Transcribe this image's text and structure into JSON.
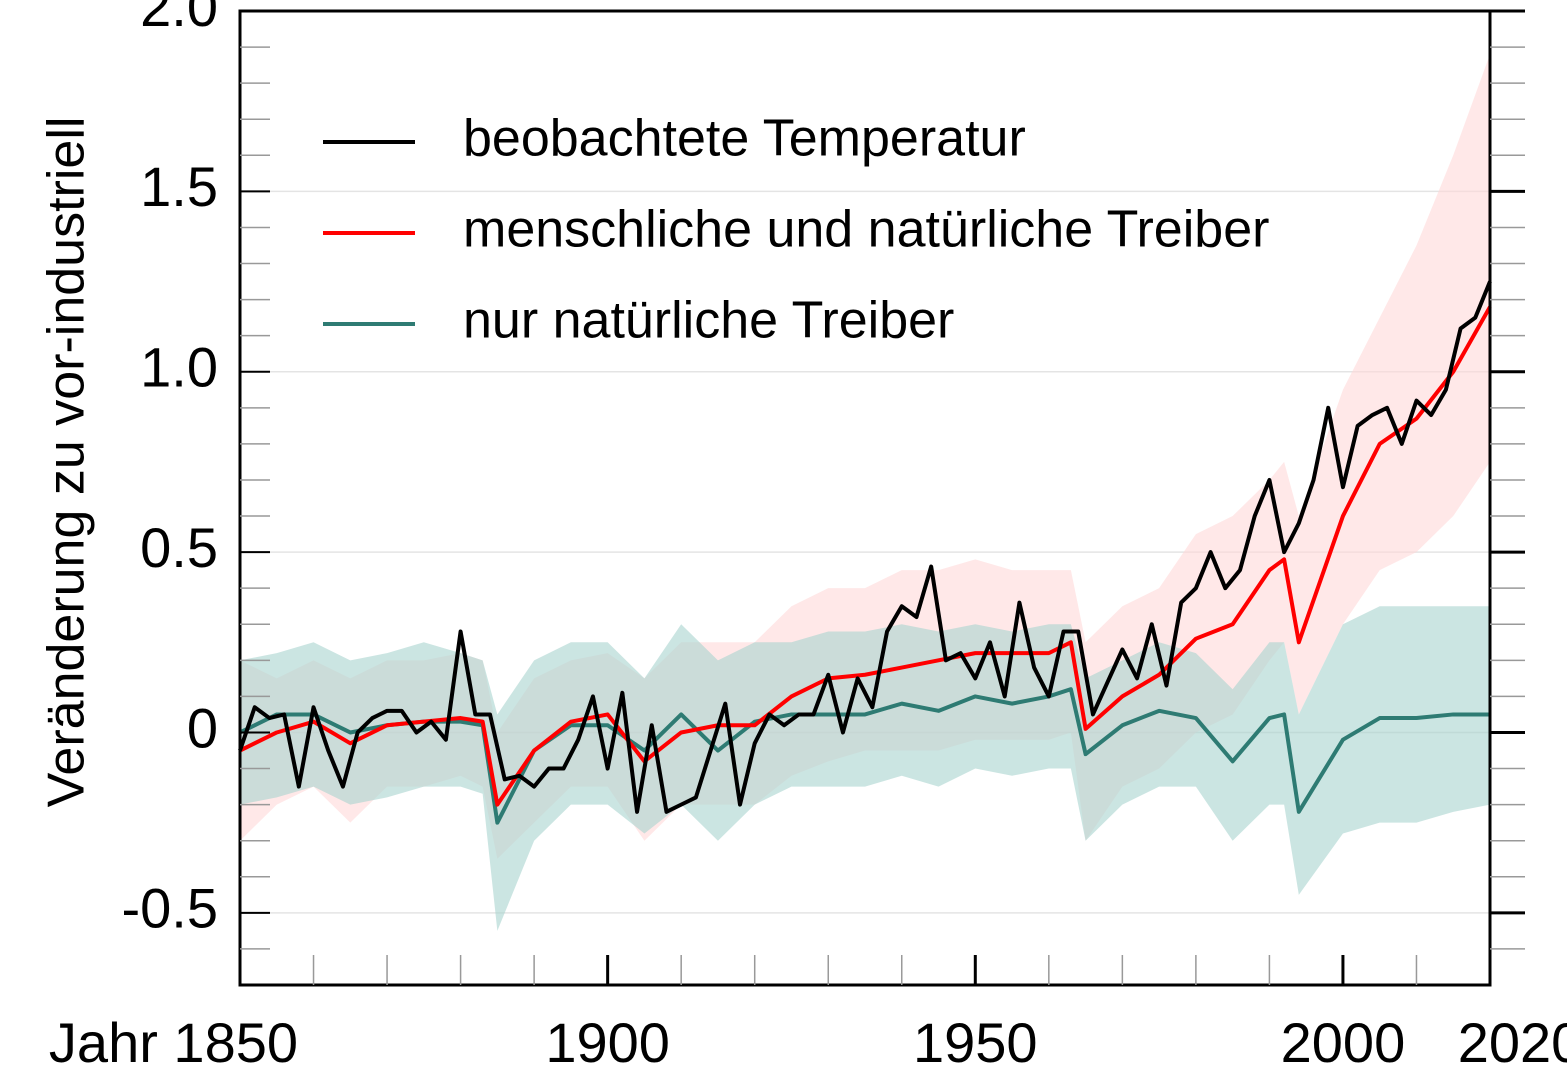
{
  "chart_data": {
    "type": "line",
    "ylabel": "Veränderung zu vor-industriell",
    "xlim": [
      1850,
      2020
    ],
    "ylim": [
      -0.7,
      2.0
    ],
    "xticks": [
      {
        "value": 1850,
        "label": "Jahr 1850"
      },
      1900,
      1950,
      2000,
      2020
    ],
    "xminorticks": [
      1860,
      1870,
      1880,
      1890,
      1910,
      1920,
      1930,
      1940,
      1960,
      1970,
      1980,
      1990,
      2010
    ],
    "yticks": [
      {
        "value": -0.5,
        "label": "-0.5"
      },
      0,
      0.5,
      {
        "value": 1,
        "label": "1.0"
      },
      1.5,
      {
        "value": 2,
        "label": "2.0"
      }
    ],
    "yminorticks": [
      -0.6,
      -0.4,
      -0.3,
      -0.2,
      -0.1,
      0.1,
      0.2,
      0.3,
      0.4,
      0.6,
      0.7,
      0.8,
      0.9,
      1.1,
      1.2,
      1.3,
      1.4,
      1.6,
      1.7,
      1.8,
      1.9
    ],
    "grid": true,
    "legend": "upper left",
    "series": [
      {
        "name": "beobachtete Temperatur",
        "color": "#000000",
        "x": [
          1850,
          1852,
          1854,
          1856,
          1858,
          1860,
          1862,
          1864,
          1866,
          1868,
          1870,
          1872,
          1874,
          1876,
          1878,
          1880,
          1882,
          1884,
          1886,
          1888,
          1890,
          1892,
          1894,
          1896,
          1898,
          1900,
          1902,
          1904,
          1906,
          1908,
          1910,
          1912,
          1914,
          1916,
          1918,
          1920,
          1922,
          1924,
          1926,
          1928,
          1930,
          1932,
          1934,
          1936,
          1938,
          1940,
          1942,
          1944,
          1946,
          1948,
          1950,
          1952,
          1954,
          1956,
          1958,
          1960,
          1962,
          1964,
          1966,
          1968,
          1970,
          1972,
          1974,
          1976,
          1978,
          1980,
          1982,
          1984,
          1986,
          1988,
          1990,
          1992,
          1994,
          1996,
          1998,
          2000,
          2002,
          2004,
          2006,
          2008,
          2010,
          2012,
          2014,
          2016,
          2018,
          2020
        ],
        "values": [
          -0.05,
          0.07,
          0.04,
          0.05,
          -0.15,
          0.07,
          -0.05,
          -0.15,
          0.0,
          0.04,
          0.06,
          0.06,
          0.0,
          0.03,
          -0.02,
          0.28,
          0.05,
          0.05,
          -0.13,
          -0.12,
          -0.15,
          -0.1,
          -0.1,
          -0.02,
          0.1,
          -0.1,
          0.11,
          -0.22,
          0.02,
          -0.22,
          -0.2,
          -0.18,
          -0.05,
          0.08,
          -0.2,
          -0.03,
          0.05,
          0.02,
          0.05,
          0.05,
          0.16,
          0.0,
          0.15,
          0.07,
          0.28,
          0.35,
          0.32,
          0.46,
          0.2,
          0.22,
          0.15,
          0.25,
          0.1,
          0.36,
          0.18,
          0.1,
          0.28,
          0.28,
          0.05,
          0.14,
          0.23,
          0.15,
          0.3,
          0.13,
          0.36,
          0.4,
          0.5,
          0.4,
          0.45,
          0.6,
          0.7,
          0.5,
          0.58,
          0.7,
          0.9,
          0.68,
          0.85,
          0.88,
          0.9,
          0.8,
          0.92,
          0.88,
          0.95,
          1.12,
          1.15,
          1.25
        ]
      },
      {
        "name": "menschliche und natürliche Treiber",
        "color": "#ff0000",
        "band_color": "#ffd9d9",
        "x": [
          1850,
          1855,
          1860,
          1865,
          1870,
          1875,
          1880,
          1883,
          1885,
          1890,
          1895,
          1900,
          1905,
          1910,
          1915,
          1920,
          1925,
          1930,
          1935,
          1940,
          1945,
          1950,
          1955,
          1960,
          1963,
          1965,
          1970,
          1975,
          1980,
          1985,
          1990,
          1992,
          1994,
          2000,
          2005,
          2010,
          2015,
          2020
        ],
        "values": [
          -0.05,
          0,
          0.03,
          -0.03,
          0.02,
          0.03,
          0.04,
          0.03,
          -0.2,
          -0.05,
          0.03,
          0.05,
          -0.08,
          0,
          0.02,
          0.02,
          0.1,
          0.15,
          0.16,
          0.18,
          0.2,
          0.22,
          0.22,
          0.22,
          0.25,
          0.01,
          0.1,
          0.16,
          0.26,
          0.3,
          0.45,
          0.48,
          0.25,
          0.6,
          0.8,
          0.87,
          1.0,
          1.18
        ],
        "upper": [
          0.2,
          0.15,
          0.2,
          0.15,
          0.2,
          0.2,
          0.22,
          0.2,
          0.0,
          0.15,
          0.2,
          0.22,
          0.15,
          0.25,
          0.25,
          0.25,
          0.35,
          0.4,
          0.4,
          0.45,
          0.45,
          0.48,
          0.45,
          0.45,
          0.45,
          0.25,
          0.35,
          0.4,
          0.55,
          0.6,
          0.7,
          0.75,
          0.6,
          0.95,
          1.15,
          1.35,
          1.6,
          1.88
        ],
        "lower": [
          -0.3,
          -0.2,
          -0.15,
          -0.25,
          -0.15,
          -0.15,
          -0.12,
          -0.15,
          -0.35,
          -0.25,
          -0.15,
          -0.15,
          -0.3,
          -0.2,
          -0.2,
          -0.2,
          -0.12,
          -0.08,
          -0.05,
          -0.05,
          -0.05,
          -0.02,
          -0.02,
          -0.02,
          0.0,
          -0.3,
          -0.15,
          -0.1,
          0.0,
          0.05,
          0.2,
          0.25,
          0.05,
          0.3,
          0.45,
          0.5,
          0.6,
          0.75
        ]
      },
      {
        "name": "nur natürliche Treiber",
        "color": "#2e7b73",
        "band_color": "#a8d3cf",
        "x": [
          1850,
          1855,
          1860,
          1865,
          1870,
          1875,
          1880,
          1883,
          1885,
          1890,
          1895,
          1900,
          1905,
          1910,
          1915,
          1920,
          1925,
          1930,
          1935,
          1940,
          1945,
          1950,
          1955,
          1960,
          1963,
          1965,
          1970,
          1975,
          1980,
          1985,
          1990,
          1992,
          1994,
          2000,
          2005,
          2010,
          2015,
          2020
        ],
        "values": [
          0,
          0.05,
          0.05,
          0,
          0.02,
          0.03,
          0.03,
          0.02,
          -0.25,
          -0.05,
          0.02,
          0.02,
          -0.05,
          0.05,
          -0.05,
          0.03,
          0.05,
          0.05,
          0.05,
          0.08,
          0.06,
          0.1,
          0.08,
          0.1,
          0.12,
          -0.06,
          0.02,
          0.06,
          0.04,
          -0.08,
          0.04,
          0.05,
          -0.22,
          -0.02,
          0.04,
          0.04,
          0.05,
          0.05
        ],
        "upper": [
          0.2,
          0.22,
          0.25,
          0.2,
          0.22,
          0.25,
          0.22,
          0.2,
          0.05,
          0.2,
          0.25,
          0.25,
          0.15,
          0.3,
          0.2,
          0.25,
          0.25,
          0.28,
          0.28,
          0.3,
          0.28,
          0.3,
          0.28,
          0.3,
          0.3,
          0.15,
          0.2,
          0.25,
          0.22,
          0.12,
          0.25,
          0.25,
          0.05,
          0.3,
          0.35,
          0.35,
          0.35,
          0.35
        ],
        "lower": [
          -0.2,
          -0.18,
          -0.15,
          -0.2,
          -0.18,
          -0.15,
          -0.15,
          -0.17,
          -0.55,
          -0.3,
          -0.2,
          -0.2,
          -0.28,
          -0.2,
          -0.3,
          -0.2,
          -0.15,
          -0.15,
          -0.15,
          -0.12,
          -0.15,
          -0.1,
          -0.12,
          -0.1,
          -0.1,
          -0.3,
          -0.2,
          -0.15,
          -0.15,
          -0.3,
          -0.2,
          -0.2,
          -0.45,
          -0.28,
          -0.25,
          -0.25,
          -0.22,
          -0.2
        ]
      }
    ]
  }
}
